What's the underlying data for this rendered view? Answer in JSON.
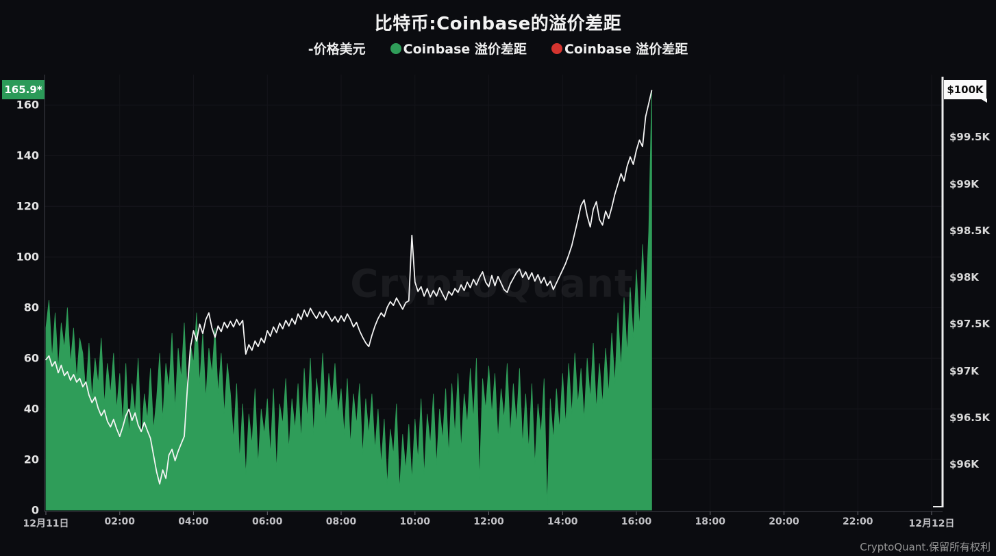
{
  "header": {
    "title": "比特币:Coinbase的溢价差距",
    "legend": [
      {
        "label": "-价格美元",
        "marker": "none",
        "color": "#f2f2f2"
      },
      {
        "label": "Coinbase 溢价差距",
        "marker": "dot",
        "color": "#2f9d59"
      },
      {
        "label": "Coinbase 溢价差距",
        "marker": "dot",
        "color": "#d4342f"
      }
    ]
  },
  "badges": {
    "left_last_value": "165.9*",
    "right_last_price": "$100K"
  },
  "watermark": "CryptoQuant",
  "footer": {
    "credit": "CryptoQuant.保留所有权利"
  },
  "chart_data": {
    "type": "area+line",
    "title": "比特币:Coinbase的溢价差距",
    "x_unit": "minutes from 12月11日 00:00",
    "x_step_minutes": 5,
    "x_range_minutes": [
      0,
      1440
    ],
    "grid": "faint",
    "x_ticks": [
      {
        "m": 0,
        "label": "12月11日"
      },
      {
        "m": 120,
        "label": "02:00"
      },
      {
        "m": 240,
        "label": "04:00"
      },
      {
        "m": 360,
        "label": "06:00"
      },
      {
        "m": 480,
        "label": "08:00"
      },
      {
        "m": 600,
        "label": "10:00"
      },
      {
        "m": 720,
        "label": "12:00"
      },
      {
        "m": 840,
        "label": "14:00"
      },
      {
        "m": 960,
        "label": "16:00"
      },
      {
        "m": 1080,
        "label": "18:00"
      },
      {
        "m": 1200,
        "label": "20:00"
      },
      {
        "m": 1320,
        "label": "22:00"
      },
      {
        "m": 1440,
        "label": "12月12日"
      }
    ],
    "left_axis": {
      "ticks": [
        0,
        20,
        40,
        60,
        80,
        100,
        120,
        140,
        160
      ],
      "lim": [
        0,
        172
      ],
      "last_value": 165.9
    },
    "right_axis": {
      "ticks": [
        {
          "value": 96,
          "label": "$96K"
        },
        {
          "value": 96.5,
          "label": "$96.5K"
        },
        {
          "value": 97,
          "label": "$97K"
        },
        {
          "value": 97.5,
          "label": "$97.5K"
        },
        {
          "value": 98,
          "label": "$98K"
        },
        {
          "value": 98.5,
          "label": "$98.5K"
        },
        {
          "value": 99,
          "label": "$99K"
        },
        {
          "value": 99.5,
          "label": "$99.5K"
        }
      ],
      "lim": [
        95.51,
        100.17
      ],
      "last_value_label": "$100K"
    },
    "series": [
      {
        "name": "Coinbase 溢价差距",
        "type": "area",
        "axis": "left",
        "color": "#2f9d59",
        "values": [
          72,
          83,
          60,
          78,
          56,
          74,
          64,
          80,
          58,
          72,
          52,
          68,
          62,
          46,
          66,
          44,
          60,
          50,
          68,
          42,
          58,
          46,
          62,
          40,
          54,
          34,
          58,
          30,
          50,
          38,
          60,
          28,
          46,
          36,
          56,
          32,
          44,
          62,
          36,
          58,
          48,
          70,
          40,
          64,
          52,
          74,
          46,
          66,
          58,
          78,
          50,
          70,
          44,
          64,
          54,
          72,
          46,
          62,
          38,
          58,
          46,
          28,
          50,
          20,
          42,
          14,
          38,
          26,
          48,
          18,
          40,
          30,
          44,
          22,
          48,
          16,
          42,
          34,
          52,
          24,
          44,
          32,
          50,
          28,
          56,
          36,
          60,
          30,
          52,
          40,
          62,
          34,
          54,
          42,
          58,
          38,
          48,
          30,
          52,
          26,
          46,
          34,
          50,
          22,
          44,
          30,
          46,
          24,
          40,
          18,
          36,
          10,
          32,
          22,
          42,
          8,
          30,
          16,
          34,
          12,
          36,
          20,
          44,
          14,
          38,
          26,
          46,
          18,
          40,
          28,
          48,
          22,
          50,
          30,
          54,
          24,
          46,
          34,
          56,
          36,
          60,
          12,
          52,
          40,
          57,
          38,
          54,
          28,
          48,
          36,
          58,
          30,
          50,
          34,
          56,
          26,
          46,
          24,
          50,
          18,
          42,
          30,
          52,
          2,
          44,
          28,
          48,
          32,
          54,
          34,
          58,
          38,
          62,
          42,
          56,
          36,
          60,
          44,
          66,
          40,
          58,
          42,
          64,
          46,
          70,
          50,
          78,
          56,
          84,
          62,
          88,
          68,
          95,
          72,
          105,
          80,
          110,
          165.9
        ]
      },
      {
        "name": "价格美元",
        "type": "line",
        "axis": "right",
        "color": "#f4f4f4",
        "values": [
          97.12,
          97.16,
          97.05,
          97.1,
          96.98,
          97.06,
          96.95,
          96.99,
          96.9,
          96.96,
          96.88,
          96.92,
          96.83,
          96.88,
          96.74,
          96.66,
          96.72,
          96.6,
          96.52,
          96.58,
          96.46,
          96.4,
          96.48,
          96.38,
          96.3,
          96.4,
          96.52,
          96.59,
          96.47,
          96.55,
          96.42,
          96.35,
          96.45,
          96.36,
          96.28,
          96.1,
          95.92,
          95.79,
          95.94,
          95.85,
          96.1,
          96.16,
          96.04,
          96.14,
          96.22,
          96.3,
          96.81,
          97.25,
          97.43,
          97.32,
          97.5,
          97.4,
          97.55,
          97.62,
          97.46,
          97.36,
          97.48,
          97.42,
          97.52,
          97.46,
          97.53,
          97.47,
          97.55,
          97.49,
          97.54,
          97.18,
          97.28,
          97.22,
          97.32,
          97.26,
          97.35,
          97.3,
          97.43,
          97.37,
          97.47,
          97.41,
          97.51,
          97.45,
          97.54,
          97.48,
          97.56,
          97.5,
          97.61,
          97.55,
          97.65,
          97.58,
          97.67,
          97.61,
          97.56,
          97.63,
          97.57,
          97.64,
          97.59,
          97.53,
          97.58,
          97.52,
          97.59,
          97.53,
          97.61,
          97.55,
          97.47,
          97.52,
          97.43,
          97.36,
          97.3,
          97.26,
          97.38,
          97.48,
          97.56,
          97.62,
          97.58,
          97.68,
          97.74,
          97.7,
          97.78,
          97.72,
          97.66,
          97.73,
          97.75,
          98.45,
          97.95,
          97.85,
          97.9,
          97.8,
          97.88,
          97.79,
          97.86,
          97.8,
          97.89,
          97.82,
          97.76,
          97.85,
          97.81,
          97.88,
          97.84,
          97.92,
          97.86,
          97.95,
          97.89,
          97.98,
          97.92,
          98.0,
          98.06,
          97.95,
          97.9,
          98.02,
          97.91,
          98.01,
          97.94,
          97.87,
          97.84,
          97.93,
          97.99,
          98.05,
          98.09,
          98.0,
          98.06,
          97.98,
          98.05,
          97.96,
          98.03,
          97.94,
          98.0,
          97.91,
          97.96,
          97.87,
          97.94,
          98.01,
          98.08,
          98.15,
          98.24,
          98.34,
          98.48,
          98.62,
          98.77,
          98.83,
          98.66,
          98.54,
          98.73,
          98.81,
          98.62,
          98.56,
          98.71,
          98.63,
          98.75,
          98.89,
          99.0,
          99.11,
          99.03,
          99.19,
          99.29,
          99.21,
          99.36,
          99.47,
          99.4,
          99.72,
          99.86,
          100.0
        ]
      }
    ]
  }
}
